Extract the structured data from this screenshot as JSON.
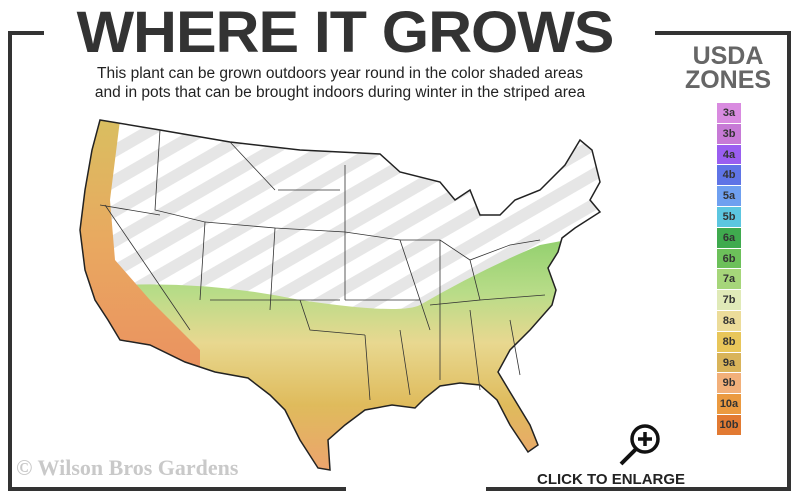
{
  "title": "WHERE IT GROWS",
  "subtitle_line1": "This plant can be grown outdoors year round in the color shaded areas",
  "subtitle_line2": "and in pots that can be brought indoors during winter in the striped area",
  "legend": {
    "title_line1": "USDA",
    "title_line2": "ZONES",
    "zones": [
      {
        "label": "3a",
        "color": "#d98be0"
      },
      {
        "label": "3b",
        "color": "#c77ad6"
      },
      {
        "label": "4a",
        "color": "#9a5ef0"
      },
      {
        "label": "4b",
        "color": "#5f74e6"
      },
      {
        "label": "5a",
        "color": "#6fa0f0"
      },
      {
        "label": "5b",
        "color": "#5cc6e0"
      },
      {
        "label": "6a",
        "color": "#3faa4e"
      },
      {
        "label": "6b",
        "color": "#6cc05a"
      },
      {
        "label": "7a",
        "color": "#a6d67a"
      },
      {
        "label": "7b",
        "color": "#e0eab8"
      },
      {
        "label": "8a",
        "color": "#ecdc9a"
      },
      {
        "label": "8b",
        "color": "#e8c65a"
      },
      {
        "label": "9a",
        "color": "#d9b45a"
      },
      {
        "label": "9b",
        "color": "#f2b07a"
      },
      {
        "label": "10a",
        "color": "#eb9a40"
      },
      {
        "label": "10b",
        "color": "#e27a32"
      }
    ]
  },
  "watermark": "© Wilson Bros Gardens",
  "enlarge_label": "CLICK TO ENLARGE",
  "icons": {
    "zoom": "magnifier-plus-icon"
  }
}
